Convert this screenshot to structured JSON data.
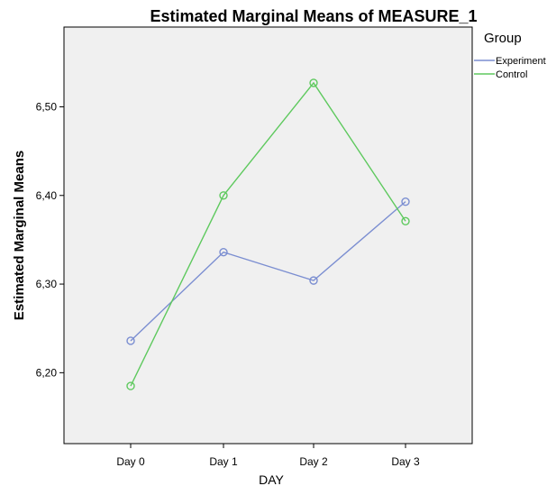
{
  "chart_data": {
    "type": "line",
    "title": "Estimated Marginal Means of MEASURE_1",
    "xlabel": "DAY",
    "ylabel": "Estimated Marginal Means",
    "categories": [
      "Day 0",
      "Day 1",
      "Day 2",
      "Day 3"
    ],
    "ylim": [
      6.12,
      6.59
    ],
    "yticks": [
      6.2,
      6.3,
      6.4,
      6.5
    ],
    "ytick_labels": [
      "6,20",
      "6,30",
      "6,40",
      "6,50"
    ],
    "grid": false,
    "plot_background": "#f0f0f0",
    "legend": {
      "title": "Group",
      "position": "top-right outside plot"
    },
    "series": [
      {
        "name": "Experiment",
        "color": "#7b8ed1",
        "marker": "circle-open",
        "values": [
          6.236,
          6.336,
          6.304,
          6.393
        ]
      },
      {
        "name": "Control",
        "color": "#5ec95e",
        "marker": "circle-open",
        "values": [
          6.185,
          6.4,
          6.527,
          6.371
        ]
      }
    ]
  }
}
